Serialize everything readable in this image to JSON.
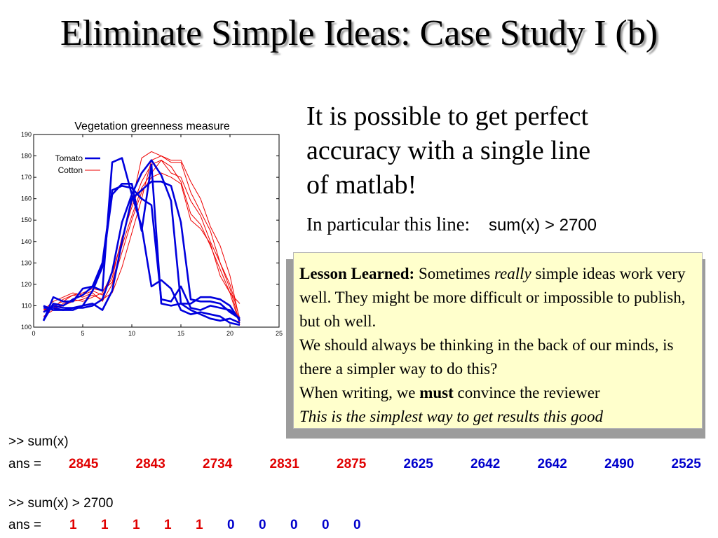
{
  "slide": {
    "title": "Eliminate Simple Ideas: Case Study I (b)"
  },
  "intro": {
    "lines": [
      "It is possible to get perfect",
      "accuracy with a single line",
      "of matlab!"
    ],
    "particular_label": "In particular this line:",
    "code": "sum(x) > 2700"
  },
  "lesson": {
    "heading": "Lesson Learned:",
    "line1_a": "Sometimes",
    "line1_b": "really",
    "line1_c": "simple ideas work very well. They might be more difficult or impossible to publish, but oh well.",
    "line2": "We should always be thinking in the back of our minds, is there a simpler way to do this?",
    "line3_a": "When writing, we",
    "line3_b": "must",
    "line3_c": "convince the reviewer",
    "line4": "This is the simplest way to get results this good"
  },
  "console": {
    "cmd1": ">> sum(x)",
    "ans_label": "ans =",
    "sums": [
      2845,
      2843,
      2734,
      2831,
      2875,
      2625,
      2642,
      2642,
      2490,
      2525
    ],
    "cmd2": ">> sum(x) > 2700",
    "flags": [
      1,
      1,
      1,
      1,
      1,
      0,
      0,
      0,
      0,
      0
    ],
    "colors": {
      "cotton": "#e00000",
      "tomato": "#0000cc"
    }
  },
  "chart_data": {
    "type": "line",
    "title": "Vegetation greenness measure",
    "xlabel": "",
    "ylabel": "",
    "xlim": [
      0,
      25
    ],
    "ylim": [
      100,
      190
    ],
    "xticks": [
      0,
      5,
      10,
      15,
      20,
      25
    ],
    "yticks": [
      100,
      110,
      120,
      130,
      140,
      150,
      160,
      170,
      180,
      190
    ],
    "grid": false,
    "legend_position": "top-left",
    "legend": [
      {
        "name": "Tomato",
        "color": "#0000dd",
        "width": 2.6
      },
      {
        "name": "Cotton",
        "color": "#ee0000",
        "width": 1.0
      }
    ],
    "series": [
      {
        "group": "Tomato",
        "x": [
          1,
          2,
          3,
          4,
          5,
          6,
          7,
          8,
          9,
          10,
          11,
          12,
          13,
          14,
          15,
          16,
          17,
          18,
          19,
          20,
          21
        ],
        "y": [
          103,
          114,
          112,
          112,
          118,
          119,
          117,
          177,
          179,
          162,
          147,
          119,
          122,
          118,
          108,
          106,
          107,
          106,
          105,
          102,
          101
        ]
      },
      {
        "group": "Tomato",
        "x": [
          1,
          2,
          3,
          4,
          5,
          6,
          7,
          8,
          9,
          10,
          11,
          12,
          13,
          14,
          15,
          16,
          17,
          18,
          19,
          20,
          21
        ],
        "y": [
          109,
          109,
          108,
          109,
          110,
          117,
          128,
          162,
          167,
          167,
          145,
          176,
          111,
          110,
          111,
          108,
          106,
          104,
          103,
          104,
          102
        ]
      },
      {
        "group": "Tomato",
        "x": [
          1,
          2,
          3,
          4,
          5,
          6,
          7,
          8,
          9,
          10,
          11,
          12,
          13,
          14,
          15,
          16,
          17,
          18,
          19,
          20,
          21
        ],
        "y": [
          110,
          108,
          108,
          108,
          110,
          111,
          108,
          117,
          140,
          160,
          164,
          168,
          168,
          166,
          149,
          113,
          112,
          112,
          111,
          107,
          104
        ]
      },
      {
        "group": "Tomato",
        "x": [
          1,
          2,
          3,
          4,
          5,
          6,
          7,
          8,
          9,
          10,
          11,
          12,
          13,
          14,
          15,
          16,
          17,
          18,
          19,
          20,
          21
        ],
        "y": [
          107,
          110,
          109,
          109,
          109,
          110,
          113,
          126,
          149,
          162,
          172,
          178,
          171,
          159,
          111,
          111,
          114,
          114,
          113,
          110,
          103
        ]
      },
      {
        "group": "Tomato",
        "x": [
          1,
          2,
          3,
          4,
          5,
          6,
          7,
          8,
          9,
          10,
          11,
          12,
          13,
          14,
          15,
          16,
          17,
          18,
          19,
          20,
          21
        ],
        "y": [
          103,
          111,
          110,
          113,
          115,
          119,
          130,
          164,
          166,
          165,
          160,
          157,
          113,
          112,
          119,
          109,
          108,
          110,
          109,
          108,
          104
        ]
      },
      {
        "group": "Cotton",
        "x": [
          1,
          2,
          3,
          4,
          5,
          6,
          7,
          8,
          9,
          10,
          11,
          12,
          13,
          14,
          15,
          16,
          17,
          18,
          19,
          20,
          21
        ],
        "y": [
          108,
          109,
          110,
          112,
          113,
          115,
          113,
          116,
          128,
          144,
          160,
          178,
          180,
          177,
          177,
          163,
          154,
          145,
          130,
          120,
          104
        ]
      },
      {
        "group": "Cotton",
        "x": [
          1,
          2,
          3,
          4,
          5,
          6,
          7,
          8,
          9,
          10,
          11,
          12,
          13,
          14,
          15,
          16,
          17,
          18,
          19,
          20,
          21
        ],
        "y": [
          105,
          108,
          111,
          113,
          112,
          114,
          116,
          125,
          141,
          158,
          179,
          182,
          180,
          178,
          178,
          168,
          160,
          147,
          138,
          124,
          103
        ]
      },
      {
        "group": "Cotton",
        "x": [
          1,
          2,
          3,
          4,
          5,
          6,
          7,
          8,
          9,
          10,
          11,
          12,
          13,
          14,
          15,
          16,
          17,
          18,
          19,
          20,
          21
        ],
        "y": [
          108,
          110,
          112,
          115,
          116,
          118,
          117,
          121,
          138,
          152,
          165,
          172,
          178,
          172,
          170,
          159,
          152,
          140,
          130,
          118,
          102
        ]
      },
      {
        "group": "Cotton",
        "x": [
          1,
          2,
          3,
          4,
          5,
          6,
          7,
          8,
          9,
          10,
          11,
          12,
          13,
          14,
          15,
          16,
          17,
          18,
          19,
          20,
          21
        ],
        "y": [
          109,
          109,
          113,
          115,
          114,
          116,
          112,
          120,
          135,
          150,
          163,
          170,
          172,
          170,
          167,
          150,
          146,
          139,
          124,
          116,
          111
        ]
      },
      {
        "group": "Cotton",
        "x": [
          1,
          2,
          3,
          4,
          5,
          6,
          7,
          8,
          9,
          10,
          11,
          12,
          13,
          14,
          15,
          16,
          17,
          18,
          19,
          20,
          21
        ],
        "y": [
          108,
          112,
          114,
          116,
          115,
          117,
          115,
          123,
          142,
          156,
          168,
          176,
          178,
          175,
          168,
          153,
          148,
          138,
          127,
          116,
          101
        ]
      }
    ]
  }
}
